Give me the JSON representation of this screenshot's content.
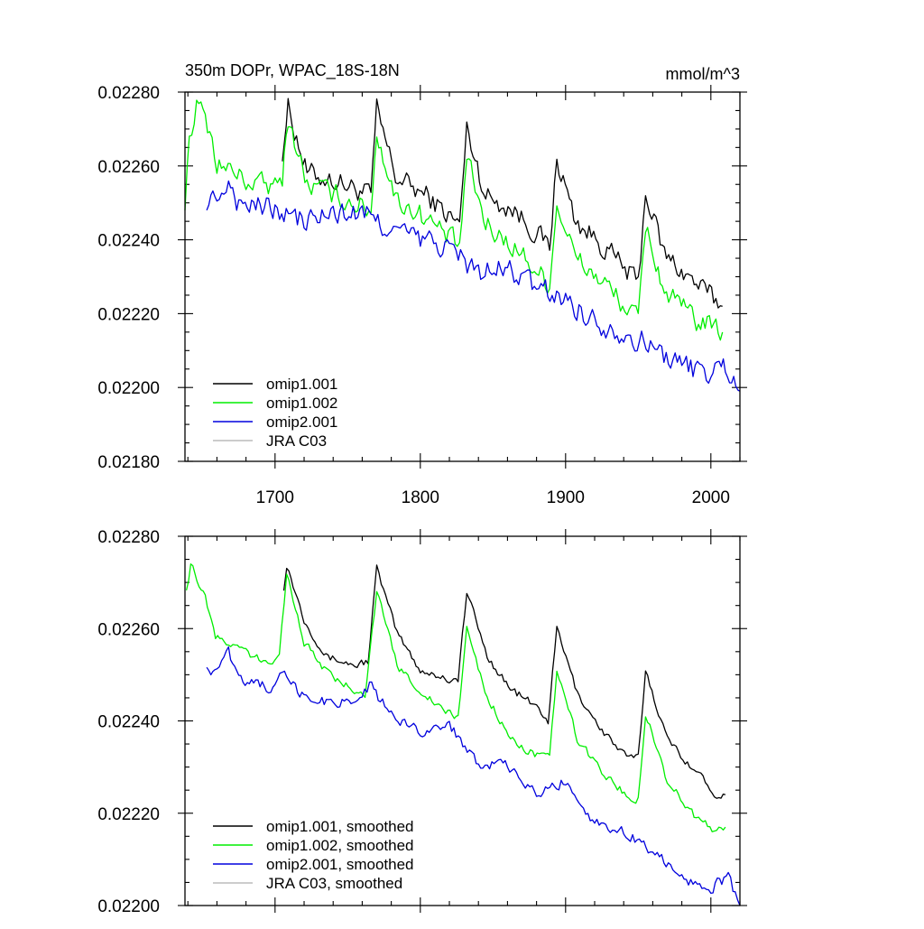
{
  "charts": [
    {
      "type": "line",
      "title_left": "350m DOPr, WPAC_18S-18N",
      "title_right": "mmol/m^3",
      "xlim": [
        1638,
        2020
      ],
      "ylim": [
        0.0218,
        0.0228
      ],
      "x_ticks": [
        1700,
        1800,
        1900,
        2000
      ],
      "y_ticks": [
        "0.02180",
        "0.02200",
        "0.02220",
        "0.02240",
        "0.02260",
        "0.02280"
      ],
      "legend_placement": "bottom-left",
      "legend": [
        {
          "label": "omip1.001",
          "color": "#000000"
        },
        {
          "label": "omip1.002",
          "color": "#00ee00"
        },
        {
          "label": "omip2.001",
          "color": "#0000dd"
        },
        {
          "label": "JRA C03",
          "color": "#bbbbbb"
        }
      ],
      "series": [
        {
          "name": "omip1.001",
          "color": "#000000",
          "knots": [
            [
              1705,
              0.02264
            ],
            [
              1709,
              0.02276
            ],
            [
              1722,
              0.02258
            ],
            [
              1742,
              0.02256
            ],
            [
              1766,
              0.02252
            ],
            [
              1770,
              0.02275
            ],
            [
              1783,
              0.02257
            ],
            [
              1804,
              0.02252
            ],
            [
              1827,
              0.02244
            ],
            [
              1832,
              0.0227
            ],
            [
              1845,
              0.02252
            ],
            [
              1865,
              0.02248
            ],
            [
              1889,
              0.02238
            ],
            [
              1894,
              0.02262
            ],
            [
              1907,
              0.02245
            ],
            [
              1927,
              0.02238
            ],
            [
              1950,
              0.02228
            ],
            [
              1955,
              0.02253
            ],
            [
              1968,
              0.02236
            ],
            [
              1990,
              0.02228
            ],
            [
              2008,
              0.02222
            ]
          ],
          "noise": 2.8e-05
        },
        {
          "name": "omip1.002",
          "color": "#00ee00",
          "knots": [
            [
              1638,
              0.0225
            ],
            [
              1641,
              0.02268
            ],
            [
              1646,
              0.02277
            ],
            [
              1655,
              0.0227
            ],
            [
              1660,
              0.02261
            ],
            [
              1680,
              0.02256
            ],
            [
              1700,
              0.02254
            ],
            [
              1705,
              0.02257
            ],
            [
              1709,
              0.02273
            ],
            [
              1722,
              0.02255
            ],
            [
              1742,
              0.02252
            ],
            [
              1766,
              0.02248
            ],
            [
              1770,
              0.02269
            ],
            [
              1783,
              0.02251
            ],
            [
              1804,
              0.02246
            ],
            [
              1827,
              0.02238
            ],
            [
              1832,
              0.02262
            ],
            [
              1845,
              0.02244
            ],
            [
              1865,
              0.02238
            ],
            [
              1889,
              0.02228
            ],
            [
              1894,
              0.0225
            ],
            [
              1907,
              0.02235
            ],
            [
              1927,
              0.02228
            ],
            [
              1950,
              0.02218
            ],
            [
              1955,
              0.02244
            ],
            [
              1968,
              0.02226
            ],
            [
              1990,
              0.02218
            ],
            [
              2008,
              0.02215
            ]
          ],
          "noise": 2.8e-05
        },
        {
          "name": "omip2.001",
          "color": "#0000dd",
          "knots": [
            [
              1653,
              0.02249
            ],
            [
              1660,
              0.02252
            ],
            [
              1668,
              0.02256
            ],
            [
              1675,
              0.0225
            ],
            [
              1700,
              0.02248
            ],
            [
              1720,
              0.02245
            ],
            [
              1740,
              0.02247
            ],
            [
              1760,
              0.02247
            ],
            [
              1780,
              0.02243
            ],
            [
              1800,
              0.0224
            ],
            [
              1820,
              0.02238
            ],
            [
              1840,
              0.02231
            ],
            [
              1860,
              0.02232
            ],
            [
              1880,
              0.02227
            ],
            [
              1900,
              0.02224
            ],
            [
              1920,
              0.02218
            ],
            [
              1940,
              0.02215
            ],
            [
              1960,
              0.02211
            ],
            [
              1980,
              0.02206
            ],
            [
              2000,
              0.02204
            ],
            [
              2010,
              0.02206
            ],
            [
              2020,
              0.02199
            ]
          ],
          "noise": 3e-05
        }
      ]
    },
    {
      "type": "line",
      "xlim": [
        1638,
        2020
      ],
      "ylim": [
        0.022,
        0.0228
      ],
      "y_ticks": [
        "0.02200",
        "0.02220",
        "0.02240",
        "0.02260",
        "0.02280"
      ],
      "legend_placement": "bottom-left",
      "legend": [
        {
          "label": "omip1.001, smoothed",
          "color": "#000000"
        },
        {
          "label": "omip1.002, smoothed",
          "color": "#00ee00"
        },
        {
          "label": "omip2.001, smoothed",
          "color": "#0000dd"
        },
        {
          "label": "JRA C03, smoothed",
          "color": "#bbbbbb"
        }
      ],
      "series": [
        {
          "name": "omip1.001, smoothed",
          "color": "#000000",
          "knots": [
            [
              1706,
              0.02269
            ],
            [
              1708,
              0.02274
            ],
            [
              1720,
              0.02262
            ],
            [
              1735,
              0.02254
            ],
            [
              1755,
              0.02252
            ],
            [
              1764,
              0.02253
            ],
            [
              1770,
              0.02273
            ],
            [
              1784,
              0.02259
            ],
            [
              1800,
              0.02251
            ],
            [
              1820,
              0.02249
            ],
            [
              1826,
              0.02249
            ],
            [
              1832,
              0.02268
            ],
            [
              1846,
              0.02254
            ],
            [
              1862,
              0.02247
            ],
            [
              1880,
              0.02243
            ],
            [
              1888,
              0.0224
            ],
            [
              1894,
              0.0226
            ],
            [
              1908,
              0.02246
            ],
            [
              1925,
              0.02238
            ],
            [
              1942,
              0.02232
            ],
            [
              1950,
              0.02232
            ],
            [
              1955,
              0.02251
            ],
            [
              1970,
              0.02236
            ],
            [
              1990,
              0.02229
            ],
            [
              2004,
              0.02224
            ],
            [
              2010,
              0.02224
            ]
          ],
          "noise": 8e-06
        },
        {
          "name": "omip1.002, smoothed",
          "color": "#00ee00",
          "knots": [
            [
              1639,
              0.02268
            ],
            [
              1642,
              0.02274
            ],
            [
              1652,
              0.02267
            ],
            [
              1659,
              0.02258
            ],
            [
              1680,
              0.02255
            ],
            [
              1695,
              0.02252
            ],
            [
              1703,
              0.02255
            ],
            [
              1708,
              0.02272
            ],
            [
              1720,
              0.02257
            ],
            [
              1740,
              0.02249
            ],
            [
              1762,
              0.02246
            ],
            [
              1770,
              0.02268
            ],
            [
              1784,
              0.02252
            ],
            [
              1805,
              0.02245
            ],
            [
              1822,
              0.02241
            ],
            [
              1826,
              0.02241
            ],
            [
              1832,
              0.0226
            ],
            [
              1846,
              0.02245
            ],
            [
              1865,
              0.02235
            ],
            [
              1885,
              0.02232
            ],
            [
              1889,
              0.02232
            ],
            [
              1894,
              0.02251
            ],
            [
              1908,
              0.02236
            ],
            [
              1928,
              0.02228
            ],
            [
              1945,
              0.02223
            ],
            [
              1950,
              0.02223
            ],
            [
              1955,
              0.02242
            ],
            [
              1970,
              0.02227
            ],
            [
              1990,
              0.02219
            ],
            [
              2004,
              0.02216
            ],
            [
              2010,
              0.02217
            ]
          ],
          "noise": 8e-06
        },
        {
          "name": "omip2.001, smoothed",
          "color": "#0000dd",
          "knots": [
            [
              1653,
              0.02251
            ],
            [
              1660,
              0.02251
            ],
            [
              1668,
              0.02255
            ],
            [
              1675,
              0.02249
            ],
            [
              1700,
              0.02247
            ],
            [
              1705,
              0.0225
            ],
            [
              1720,
              0.02245
            ],
            [
              1740,
              0.02244
            ],
            [
              1760,
              0.02245
            ],
            [
              1765,
              0.02248
            ],
            [
              1780,
              0.02241
            ],
            [
              1800,
              0.02238
            ],
            [
              1820,
              0.02239
            ],
            [
              1840,
              0.02231
            ],
            [
              1860,
              0.0223
            ],
            [
              1880,
              0.02224
            ],
            [
              1900,
              0.02227
            ],
            [
              1920,
              0.02218
            ],
            [
              1940,
              0.02216
            ],
            [
              1960,
              0.02212
            ],
            [
              1980,
              0.02206
            ],
            [
              2000,
              0.02204
            ],
            [
              2012,
              0.02206
            ],
            [
              2020,
              0.022
            ]
          ],
          "noise": 1.1e-05
        }
      ]
    }
  ]
}
